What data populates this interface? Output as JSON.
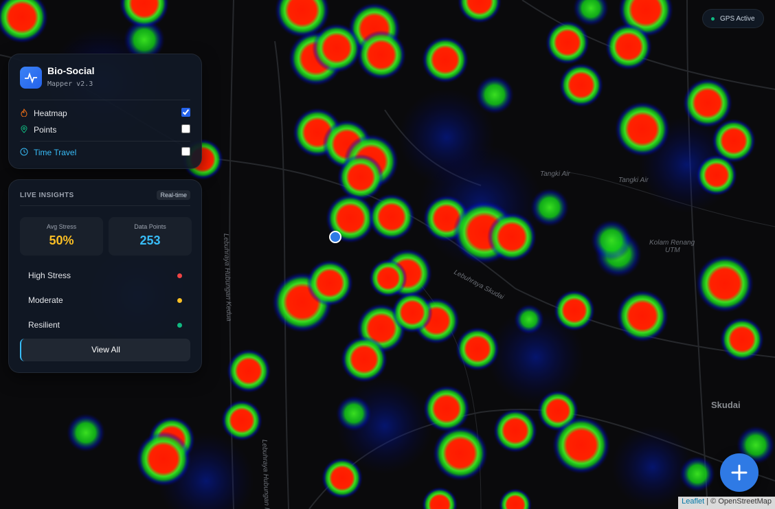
{
  "status": {
    "label": "GPS Active"
  },
  "panel": {
    "title": "Bio-Social",
    "subtitle": "Mapper v2.3",
    "layers": [
      {
        "label": "Heatmap",
        "checked": true
      },
      {
        "label": "Points",
        "checked": false
      },
      {
        "label": "Time Travel",
        "checked": false
      }
    ]
  },
  "insights": {
    "title": "LIVE INSIGHTS",
    "badge": "Real-time",
    "stats": [
      {
        "label": "Avg Stress",
        "value": "50%"
      },
      {
        "label": "Data Points",
        "value": "253"
      }
    ],
    "legend": [
      {
        "label": "High Stress",
        "color": "#ef4444"
      },
      {
        "label": "Moderate",
        "color": "#fbbf24"
      },
      {
        "label": "Resilient",
        "color": "#10b981"
      }
    ],
    "button": "View All"
  },
  "map": {
    "labels": [
      "Lebuhraya Skudai",
      "Tangki Air",
      "Tangki Air",
      "Kolam Renang",
      "UTM",
      "Skudai",
      "Lebuhraya Hubungan Kedua",
      "Lebuhraya Hubungan Kedua"
    ]
  },
  "attribution": {
    "link": "Leaflet",
    "text": "| © OpenStreetMap"
  }
}
